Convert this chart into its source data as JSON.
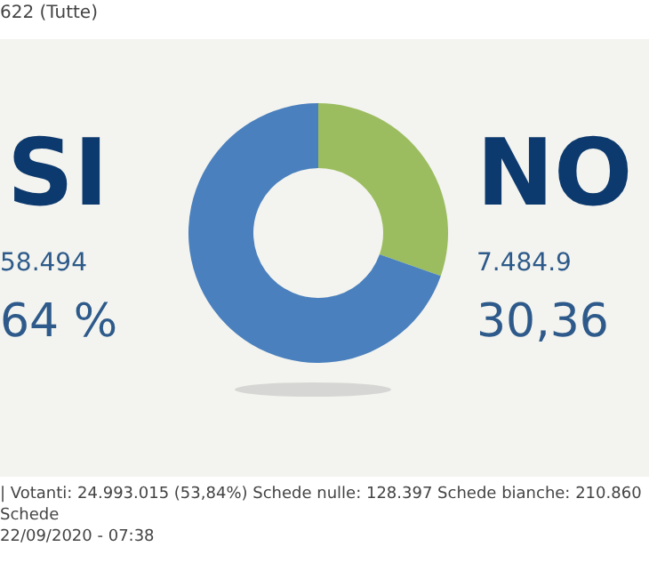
{
  "chart_data": {
    "type": "donut",
    "title": "622 (Tutte)",
    "categories": [
      "NO",
      "SI"
    ],
    "values": [
      30.36,
      69.64
    ],
    "colors": [
      "#9bbd5f",
      "#4a80bd"
    ],
    "value_labels": [
      "30,36",
      null
    ],
    "legend": false,
    "annotations": [
      "7.484.9",
      "58.494",
      "64 %",
      "| Votanti: 24.993.015 (53,84%) Schede nulle: 128.397 Schede bianche: 210.860 Schede",
      "22/09/2020 - 07:38"
    ]
  }
}
